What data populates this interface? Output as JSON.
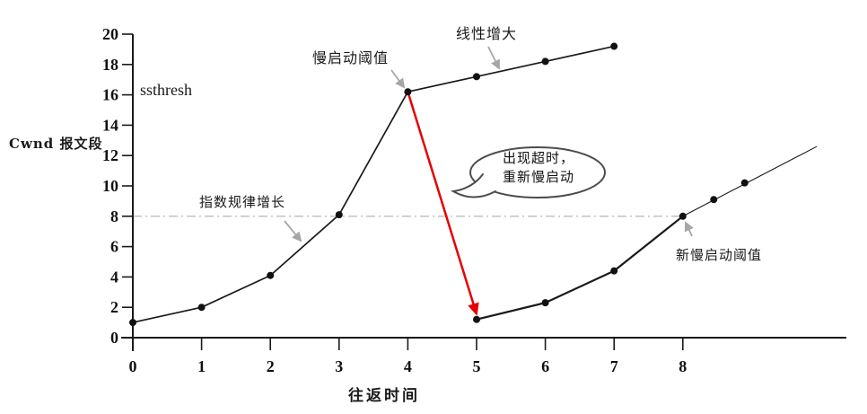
{
  "chart": {
    "ylabel": "Cwnd 报文段",
    "xlabel": "往返时间",
    "ssthresh_label": "ssthresh",
    "annotations": {
      "slow_start_threshold": "慢启动阈值",
      "linear_increase": "线性增大",
      "exponential_growth": "指数规律增长",
      "new_slow_start_threshold": "新慢启动阈值",
      "timeout_bubble_line1": "出现超时，",
      "timeout_bubble_line2": "重新慢启动"
    }
  },
  "chart_data": {
    "type": "line",
    "title": "",
    "xlabel": "往返时间",
    "ylabel": "Cwnd 报文段",
    "xlim": [
      0,
      10.3
    ],
    "ylim": [
      0,
      20
    ],
    "x_ticks": [
      0,
      1,
      2,
      3,
      4,
      5,
      6,
      7,
      8
    ],
    "y_ticks": [
      0,
      2,
      4,
      6,
      8,
      10,
      12,
      14,
      16,
      18,
      20
    ],
    "grid": false,
    "legend": false,
    "series": [
      {
        "name": "slow-start-phase-1",
        "points": [
          [
            0,
            1
          ],
          [
            1,
            2
          ],
          [
            2,
            4.1
          ],
          [
            3,
            8.1
          ],
          [
            4,
            16.2
          ]
        ],
        "dots": [
          [
            0,
            1
          ],
          [
            1,
            2
          ],
          [
            2,
            4.1
          ],
          [
            3,
            8.1
          ],
          [
            4,
            16.2
          ]
        ],
        "width": 1.7
      },
      {
        "name": "linear-increase-phase-1",
        "points": [
          [
            4,
            16.2
          ],
          [
            5,
            17.2
          ],
          [
            6,
            18.2
          ],
          [
            7,
            19.2
          ]
        ],
        "dots": [
          [
            5,
            17.2
          ],
          [
            6,
            18.2
          ],
          [
            7,
            19.2
          ]
        ],
        "width": 1.7
      },
      {
        "name": "slow-start-phase-2",
        "points": [
          [
            5,
            1.2
          ],
          [
            6,
            2.3
          ],
          [
            7,
            4.4
          ],
          [
            8,
            8
          ]
        ],
        "dots": [
          [
            5,
            1.2
          ],
          [
            6,
            2.3
          ],
          [
            7,
            4.4
          ],
          [
            8,
            8
          ]
        ],
        "width": 2.2
      },
      {
        "name": "linear-increase-phase-2",
        "points": [
          [
            8,
            8
          ],
          [
            9.95,
            12.6
          ]
        ],
        "dots": [
          [
            8.45,
            9.1
          ],
          [
            8.9,
            10.2
          ]
        ],
        "width": 1.1
      }
    ],
    "threshold_line": {
      "y": 8,
      "x_from": 0,
      "x_to": 8.05
    },
    "timeout_arrow": {
      "from": [
        4,
        16.2
      ],
      "to": [
        5,
        1.55
      ]
    },
    "line_color": "#1a1a1a",
    "dot_color": "#111111",
    "timeout_arrow_color": "#e60000",
    "threshold_line_color": "#bcbcbc",
    "annotation_arrow_color": "#a6a6a6",
    "bubble_stroke_color": "#4d4d4d"
  }
}
